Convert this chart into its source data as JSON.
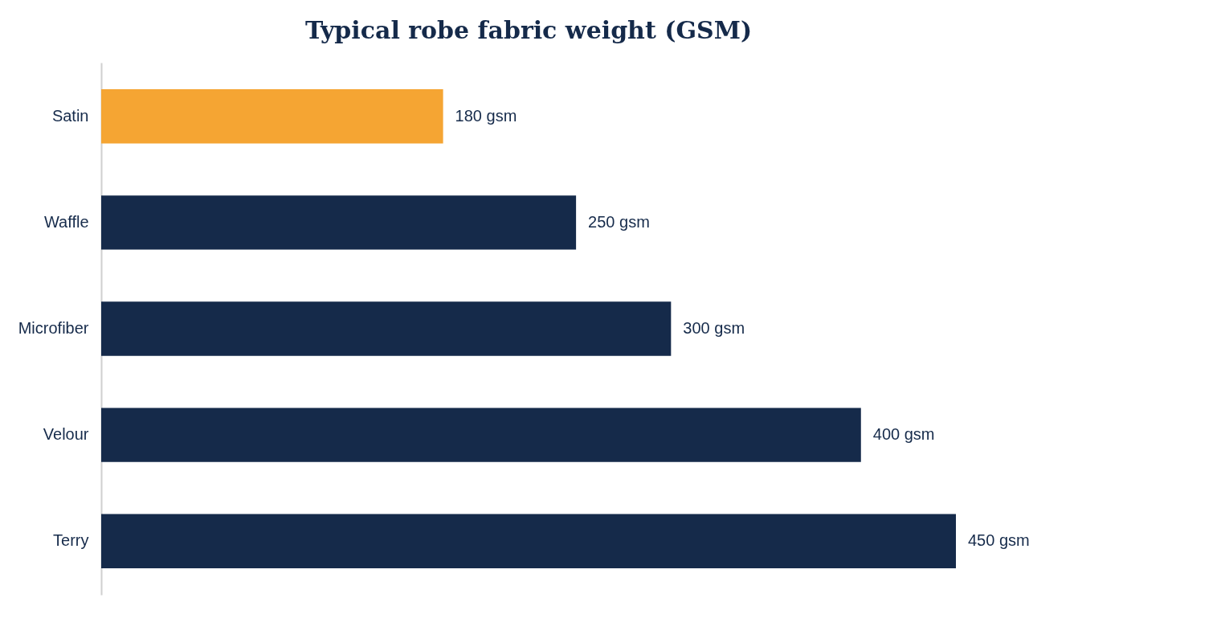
{
  "chart_data": {
    "type": "bar",
    "orientation": "horizontal",
    "title": "Typical robe fabric weight (GSM)",
    "categories": [
      "Satin",
      "Waffle",
      "Microfiber",
      "Velour",
      "Terry"
    ],
    "values": [
      180,
      250,
      300,
      400,
      450
    ],
    "colors": [
      "#f5a533",
      "#152a4a",
      "#152a4a",
      "#152a4a",
      "#152a4a"
    ],
    "value_labels": [
      "180 gsm",
      "250 gsm",
      "300 gsm",
      "400 gsm",
      "450 gsm"
    ]
  }
}
